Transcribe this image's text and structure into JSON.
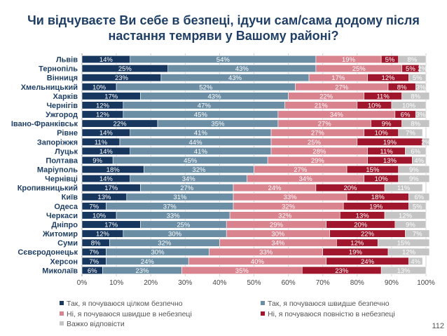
{
  "title_lines": [
    "Чи відчуваєте Ви себе в безпеці, ідучи сам/сама додому після",
    "настання темряви у Вашому районі?"
  ],
  "page_number": "112",
  "chart_data": {
    "type": "bar",
    "orientation": "horizontal",
    "stacked": true,
    "title": "Чи відчуваєте Ви себе в безпеці, ідучи сам/сама додому після настання темряви у Вашому районі?",
    "categories": [
      "Львів",
      "Тернопіль",
      "Вінниця",
      "Хмельницький",
      "Харків",
      "Чернігів",
      "Ужгород",
      "Івано-Франківськ",
      "Рівне",
      "Запоріжжя",
      "Луцьк",
      "Полтава",
      "Маріуполь",
      "Чернівці",
      "Кропивницький",
      "Київ",
      "Одеса",
      "Черкаси",
      "Дніпро",
      "Житомир",
      "Суми",
      "Сєвєродонецьк",
      "Херсон",
      "Миколаїв"
    ],
    "series": [
      {
        "name": "Так, я почуваюся цілком безпечно",
        "color": "#17375e",
        "values": [
          14,
          25,
          23,
          10,
          17,
          12,
          12,
          22,
          14,
          11,
          14,
          9,
          18,
          14,
          17,
          13,
          7,
          10,
          17,
          12,
          8,
          7,
          7,
          6
        ]
      },
      {
        "name": "Так, я почуваюся швидше безпечно",
        "color": "#6b8ea5",
        "values": [
          54,
          43,
          43,
          52,
          43,
          47,
          45,
          35,
          41,
          44,
          41,
          45,
          32,
          34,
          27,
          31,
          37,
          33,
          25,
          30,
          32,
          30,
          24,
          23
        ]
      },
      {
        "name": "Ні, я почуваюся швидше в небезпеці",
        "color": "#d9838f",
        "values": [
          19,
          25,
          17,
          27,
          22,
          21,
          34,
          27,
          27,
          25,
          28,
          29,
          27,
          34,
          24,
          33,
          32,
          32,
          29,
          30,
          34,
          33,
          40,
          35
        ]
      },
      {
        "name": "Ні, я почуваюся повністю в небезпеці",
        "color": "#a0172d",
        "values": [
          5,
          5,
          12,
          8,
          11,
          10,
          6,
          9,
          10,
          19,
          11,
          13,
          15,
          10,
          20,
          18,
          19,
          13,
          20,
          22,
          12,
          19,
          24,
          23
        ]
      },
      {
        "name": "Важко відповісти",
        "color": "#c4c4c4",
        "values": [
          8,
          2,
          5,
          3,
          8,
          10,
          3,
          8,
          7,
          2,
          6,
          4,
          9,
          9,
          11,
          6,
          5,
          12,
          9,
          7,
          15,
          12,
          4,
          13
        ]
      }
    ],
    "xlim": [
      0,
      100
    ],
    "x_ticks": [
      "0%",
      "10%",
      "20%",
      "30%",
      "40%",
      "50%",
      "60%",
      "70%",
      "80%",
      "90%",
      "100%"
    ],
    "grid": true,
    "legend_position": "bottom"
  }
}
